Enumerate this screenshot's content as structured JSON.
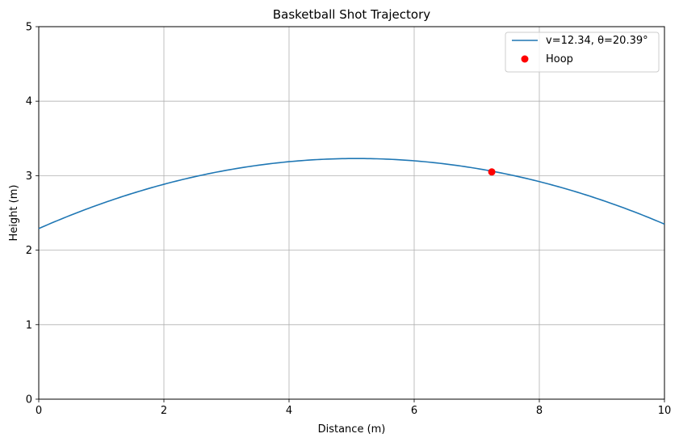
{
  "chart_data": {
    "type": "line",
    "title": "Basketball Shot Trajectory",
    "xlabel": "Distance (m)",
    "ylabel": "Height (m)",
    "xlim": [
      0,
      10
    ],
    "ylim": [
      0,
      5
    ],
    "xticks": [
      0,
      2,
      4,
      6,
      8,
      10
    ],
    "yticks": [
      0,
      1,
      2,
      3,
      4,
      5
    ],
    "grid": true,
    "legend_position": "top-right",
    "series": [
      {
        "name": "v=12.34, θ=20.39°",
        "kind": "line",
        "color": "#1f77b4",
        "start_height": 2.29,
        "x": [
          0,
          0.5,
          1,
          1.5,
          2,
          2.5,
          3,
          3.5,
          4,
          4.5,
          5,
          5.5,
          6,
          6.5,
          7,
          7.5,
          8,
          8.5,
          9,
          9.5,
          10
        ],
        "y": [
          2.29,
          2.46,
          2.61,
          2.75,
          2.88,
          2.98,
          3.07,
          3.14,
          3.19,
          3.22,
          3.23,
          3.23,
          3.2,
          3.16,
          3.1,
          3.02,
          2.92,
          2.81,
          2.68,
          2.52,
          2.35
        ]
      },
      {
        "name": "Hoop",
        "kind": "scatter",
        "color": "#ff0000",
        "x": [
          7.24
        ],
        "y": [
          3.05
        ]
      }
    ]
  }
}
